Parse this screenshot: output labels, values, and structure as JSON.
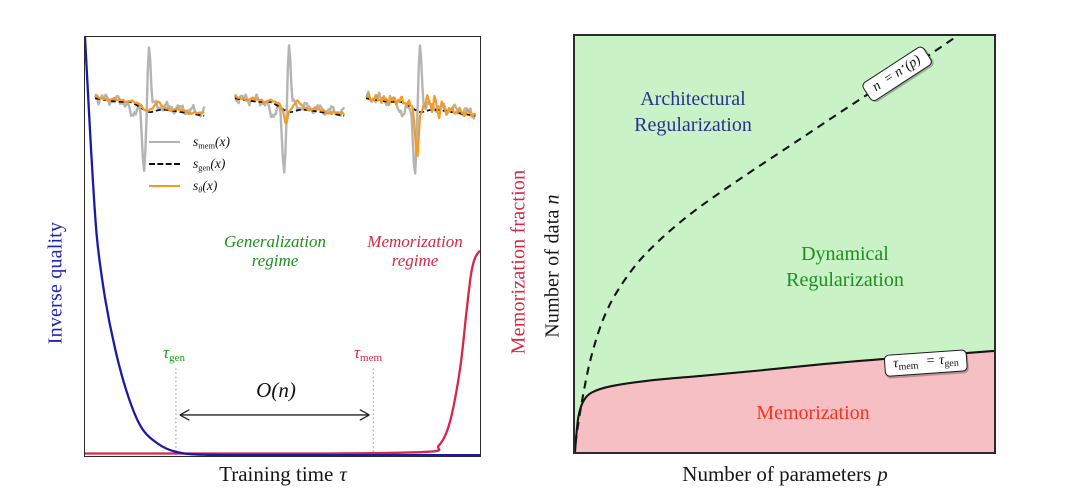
{
  "figure": {
    "left": {
      "ylabel_left": "Inverse quality",
      "ylabel_right": "Memorization fraction",
      "xlabel": {
        "text": "Training time",
        "sym": "τ"
      },
      "regimes": {
        "gen": {
          "line1": "Generalization",
          "line2": "regime"
        },
        "mem": {
          "line1": "Memorization",
          "line2": "regime"
        }
      },
      "tau_gen": {
        "sym": "τ",
        "sub": "gen"
      },
      "tau_mem": {
        "sym": "τ",
        "sub": "mem"
      },
      "gap": {
        "o": "O",
        "open": "(",
        "n": "n",
        "close": ")"
      },
      "legend": [
        {
          "s": "s",
          "sub": "mem",
          "args": "(x)"
        },
        {
          "s": "s",
          "sub": "gen",
          "args": "(x)"
        },
        {
          "s": "s",
          "sub": "θ",
          "args": "(x)"
        }
      ]
    },
    "right": {
      "ylabel": {
        "text": "Number of data",
        "sym": "n"
      },
      "xlabel": {
        "text": "Number of parameters",
        "sym": "p"
      },
      "regions": {
        "arch": {
          "line1": "Architectural",
          "line2": "Regularization"
        },
        "dyn": {
          "line1": "Dynamical",
          "line2": "Regularization"
        },
        "mem": "Memorization"
      },
      "boxes": {
        "n_star": {
          "a": "n",
          "eq": "=",
          "b": "n",
          "sup": "⋆",
          "args": "(p)"
        },
        "tau_eq": {
          "a": "τ",
          "suba": "mem",
          "eq": "=",
          "b": "τ",
          "subb": "gen"
        }
      }
    }
  },
  "colors": {
    "blue_text": "#2222bb",
    "blue_curve": "#1a1aa8",
    "crimson": "#d62846",
    "green_tau": "#1e9b1e",
    "green_regime": "#1d8f1d",
    "red_label": "#f8331d",
    "navy_label": "#28338e",
    "green_bg": "#c9f2c6",
    "pink_bg": "#f6bfc3",
    "gray_wave": "#b4b4b4",
    "orange_wave": "#f59a23",
    "guide": "#9a9a9a",
    "arrow": "#222222",
    "boundary": "#151515"
  },
  "chart_data": [
    {
      "type": "line",
      "panel": "training-dynamics",
      "xlabel": "Training time τ",
      "ylabel_left": "Inverse quality",
      "ylabel_right": "Memorization fraction",
      "x_range_norm": [
        0,
        1
      ],
      "y_range_norm": [
        0,
        1
      ],
      "grid": false,
      "series": [
        {
          "name": "Inverse quality",
          "color_key": "blue_curve",
          "axis": "left",
          "points": [
            [
              0,
              1
            ],
            [
              0.015,
              0.738
            ],
            [
              0.03,
              0.524
            ],
            [
              0.051,
              0.376
            ],
            [
              0.076,
              0.257
            ],
            [
              0.106,
              0.152
            ],
            [
              0.141,
              0.071
            ],
            [
              0.182,
              0.031
            ],
            [
              0.23,
              0.01
            ],
            [
              0.303,
              0.003
            ],
            [
              0.5,
              0.002
            ],
            [
              0.75,
              0.002
            ],
            [
              1,
              0.002
            ]
          ]
        },
        {
          "name": "Memorization fraction",
          "color_key": "crimson",
          "axis": "right",
          "points": [
            [
              0,
              0.006
            ],
            [
              0.3,
              0.006
            ],
            [
              0.6,
              0.006
            ],
            [
              0.868,
              0.01
            ],
            [
              0.895,
              0.024
            ],
            [
              0.916,
              0.058
            ],
            [
              0.933,
              0.118
            ],
            [
              0.951,
              0.218
            ],
            [
              0.965,
              0.338
            ],
            [
              0.977,
              0.432
            ],
            [
              0.987,
              0.472
            ],
            [
              1,
              0.49
            ]
          ]
        }
      ],
      "annotations": {
        "tau_gen_x": 0.23,
        "tau_mem_x": 0.73,
        "guide_top": 0.209,
        "arrow_y": 0.098,
        "gap_label": "O(n)"
      },
      "insets": {
        "x": [
          8,
          148,
          279
        ],
        "y": 4,
        "w": 114,
        "h": 140,
        "spike_x": 52,
        "legend": [
          "s_mem(x)",
          "s_gen(x)",
          "s_theta(x)"
        ],
        "panels": [
          {
            "seed": 11,
            "dip": 0,
            "noise": 2.2,
            "bump": 5
          },
          {
            "seed": 23,
            "dip": 13,
            "noise": 2.4,
            "bump": 6
          },
          {
            "seed": 37,
            "dip": 50,
            "noise": 4.6,
            "bump": 8
          }
        ]
      }
    },
    {
      "type": "area",
      "panel": "phase-diagram",
      "xlabel": "Number of parameters p",
      "ylabel": "Number of data n",
      "regions": [
        {
          "name": "Architectural Regularization",
          "color_key": "green_bg"
        },
        {
          "name": "Dynamical Regularization",
          "color_key": "green_bg"
        },
        {
          "name": "Memorization",
          "color_key": "pink_bg"
        }
      ],
      "boundaries": [
        {
          "name": "n = n⋆(p)",
          "style": "dashed",
          "points": [
            [
              0.001,
              0.02
            ],
            [
              0.014,
              0.107
            ],
            [
              0.038,
              0.226
            ],
            [
              0.073,
              0.333
            ],
            [
              0.121,
              0.417
            ],
            [
              0.18,
              0.488
            ],
            [
              0.274,
              0.571
            ],
            [
              0.392,
              0.655
            ],
            [
              0.534,
              0.75
            ],
            [
              0.676,
              0.845
            ],
            [
              0.818,
              0.936
            ],
            [
              0.912,
              1.0
            ]
          ]
        },
        {
          "name": "τ_mem = τ_gen",
          "style": "solid",
          "points": [
            [
              0,
              0
            ],
            [
              0.004,
              0.05
            ],
            [
              0.009,
              0.09
            ],
            [
              0.02,
              0.122
            ],
            [
              0.04,
              0.143
            ],
            [
              0.085,
              0.158
            ],
            [
              0.18,
              0.172
            ],
            [
              0.3,
              0.183
            ],
            [
              0.44,
              0.196
            ],
            [
              0.6,
              0.212
            ],
            [
              0.77,
              0.226
            ],
            [
              0.91,
              0.236
            ],
            [
              1,
              0.243
            ]
          ]
        }
      ]
    }
  ]
}
